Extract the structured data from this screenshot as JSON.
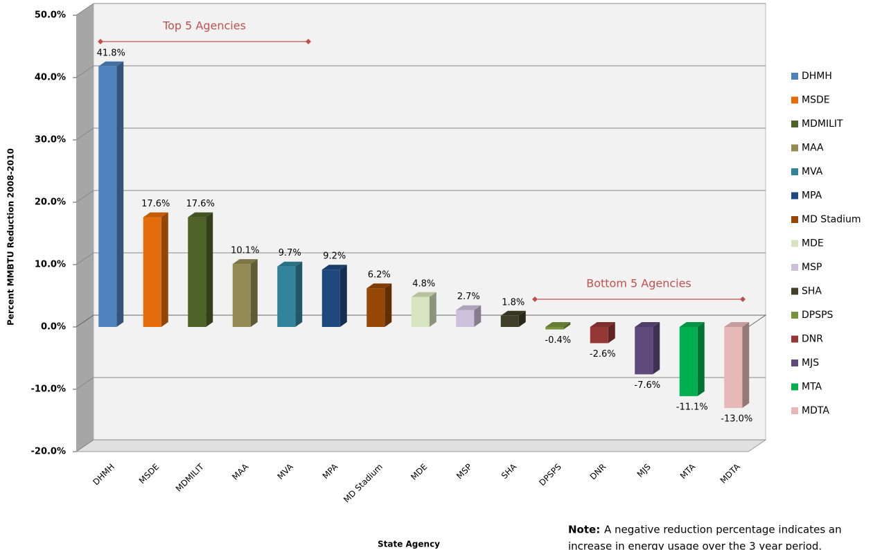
{
  "chart_data": {
    "type": "bar3d",
    "ylabel": "Percent MMBTU Reduction 2008-2010",
    "xlabel": "State Agency",
    "categories": [
      "DHMH",
      "MSDE",
      "MDMILIT",
      "MAA",
      "MVA",
      "MPA",
      "MD Stadium",
      "MDE",
      "MSP",
      "SHA",
      "DPSPS",
      "DNR",
      "MJS",
      "MTA",
      "MDTA"
    ],
    "values": [
      41.8,
      17.6,
      17.6,
      10.1,
      9.7,
      9.2,
      6.2,
      4.8,
      2.7,
      1.8,
      -0.4,
      -2.6,
      -7.6,
      -11.1,
      -13.0
    ],
    "value_labels": [
      "41.8%",
      "17.6%",
      "17.6%",
      "10.1%",
      "9.7%",
      "9.2%",
      "6.2%",
      "4.8%",
      "2.7%",
      "1.8%",
      "-0.4%",
      "-2.6%",
      "-7.6%",
      "-11.1%",
      "-13.0%"
    ],
    "colors": [
      "#4f81bd",
      "#e46c0a",
      "#4f6228",
      "#948a54",
      "#31849b",
      "#1f497d",
      "#974806",
      "#d7e4bd",
      "#ccc1da",
      "#3f3f2a",
      "#77933c",
      "#953735",
      "#604a7b",
      "#00b050",
      "#e6b9b8"
    ],
    "ylim": [
      -20,
      50
    ],
    "yticks": [
      {
        "value": -20,
        "label": "-20.0%"
      },
      {
        "value": -10,
        "label": "-10.0%"
      },
      {
        "value": 0,
        "label": "0.0%"
      },
      {
        "value": 10,
        "label": "10.0%"
      },
      {
        "value": 20,
        "label": "20.0%"
      },
      {
        "value": 30,
        "label": "30.0%"
      },
      {
        "value": 40,
        "label": "40.0%"
      },
      {
        "value": 50,
        "label": "50.0%"
      }
    ],
    "grid": true,
    "legend": "right",
    "annotations": [
      "Top 5 Agencies",
      "Bottom 5 Agencies"
    ],
    "note_label": "Note:",
    "note": [
      "A negative reduction percentage indicates an",
      "increase in energy usage over the 3 year period."
    ]
  }
}
